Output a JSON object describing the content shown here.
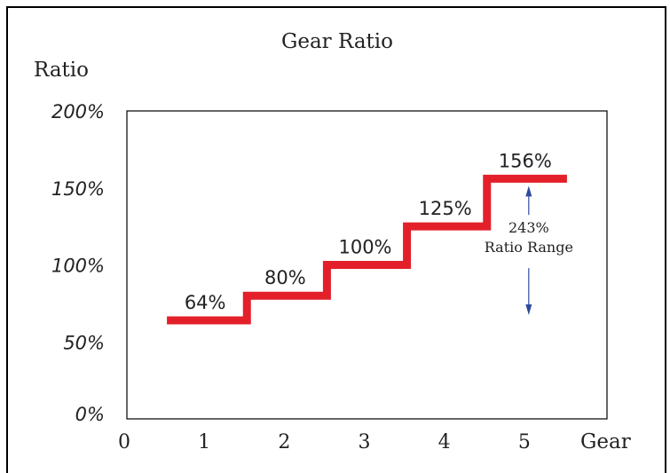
{
  "chart_data": {
    "type": "line",
    "step": true,
    "title": "Gear Ratio",
    "ylabel": "Ratio",
    "xlabel": "Gear",
    "xlim": [
      0,
      6
    ],
    "ylim": [
      0,
      200
    ],
    "x_ticks": [
      "0",
      "1",
      "2",
      "3",
      "4",
      "5"
    ],
    "y_ticks": [
      "0%",
      "50%",
      "100%",
      "150%",
      "200%"
    ],
    "categories": [
      "1",
      "2",
      "3",
      "4",
      "5"
    ],
    "series": [
      {
        "values": [
          64,
          80,
          100,
          125,
          156
        ],
        "color": "#e3202a"
      }
    ],
    "data_labels": [
      "64%",
      "80%",
      "100%",
      "125%",
      "156%"
    ],
    "annotation": {
      "value_text": "243%",
      "text": "Ratio Range",
      "arrow_color": "#2e4a9e"
    },
    "grid": false,
    "legend": "none"
  }
}
